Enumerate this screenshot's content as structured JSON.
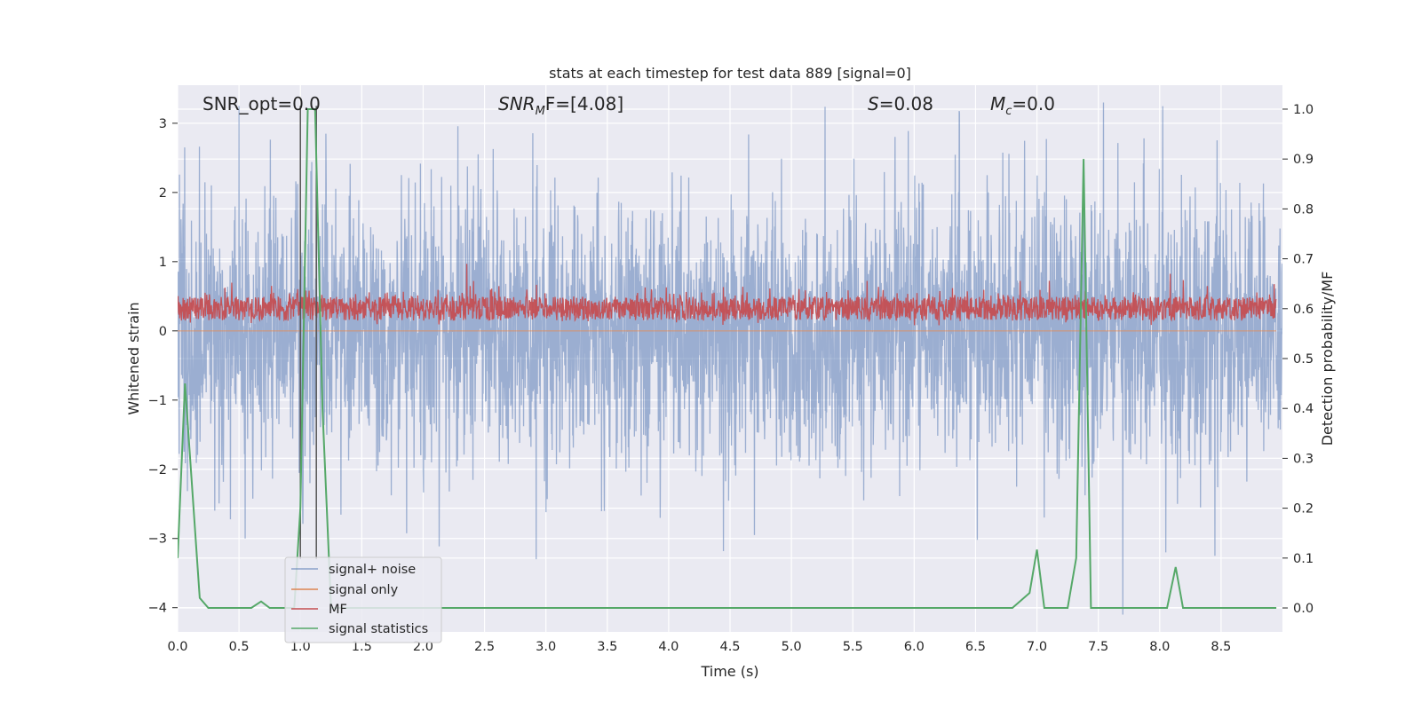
{
  "chart_data": {
    "type": "line",
    "title": "stats at each timestep for test data 889 [signal=0]",
    "xlabel": "Time (s)",
    "ylabel": "Whitened strain",
    "y2label": "Detection probability/MF",
    "xlim": [
      0,
      9.0
    ],
    "ylim": [
      -4.35,
      3.55
    ],
    "y2lim": [
      -0.048,
      1.048
    ],
    "x_ticks": [
      0.0,
      0.5,
      1.0,
      1.5,
      2.0,
      2.5,
      3.0,
      3.5,
      4.0,
      4.5,
      5.0,
      5.5,
      6.0,
      6.5,
      7.0,
      7.5,
      8.0,
      8.5
    ],
    "x_tick_labels": [
      "0.0",
      "0.5",
      "1.0",
      "1.5",
      "2.0",
      "2.5",
      "3.0",
      "3.5",
      "4.0",
      "4.5",
      "5.0",
      "5.5",
      "6.0",
      "6.5",
      "7.0",
      "7.5",
      "8.0",
      "8.5"
    ],
    "y_ticks": [
      -4,
      -3,
      -2,
      -1,
      0,
      1,
      2,
      3
    ],
    "y_tick_labels": [
      "−4",
      "−3",
      "−2",
      "−1",
      "0",
      "1",
      "2",
      "3"
    ],
    "y2_ticks": [
      0.0,
      0.1,
      0.2,
      0.3,
      0.4,
      0.5,
      0.6,
      0.7,
      0.8,
      0.9,
      1.0
    ],
    "y2_tick_labels": [
      "0.0",
      "0.1",
      "0.2",
      "0.3",
      "0.4",
      "0.5",
      "0.6",
      "0.7",
      "0.8",
      "0.9",
      "1.0"
    ],
    "grid": true,
    "legend_position": "lower-left",
    "annotations": {
      "snr_opt": "SNR_opt=0.0",
      "snr_mf_main": "SNR",
      "snr_mf_sub": "M",
      "snr_mf_rest": "F=[4.08]",
      "s_main": "S",
      "s_rest": "=0.08",
      "mc_main": "M",
      "mc_sub": "c",
      "mc_rest": "=0.0"
    },
    "series": [
      {
        "name": "signal+ noise",
        "color": "#4c72b0",
        "axis": "left",
        "style": "noise",
        "noise_sigma": 1.0,
        "duration": 9.0,
        "spikes": [
          [
            0.5,
            3.25
          ],
          [
            1.13,
            3.25
          ],
          [
            6.37,
            3.15
          ],
          [
            7.7,
            3.25
          ],
          [
            2.92,
            -3.3
          ],
          [
            7.7,
            -4.1
          ],
          [
            8.05,
            -3.2
          ],
          [
            8.45,
            -3.25
          ],
          [
            4.7,
            -2.95
          ],
          [
            0.55,
            -3.0
          ]
        ]
      },
      {
        "name": "signal only",
        "color": "#dd8452",
        "axis": "left",
        "style": "flat",
        "value": 0.0
      },
      {
        "name": "MF",
        "color": "#c44e52",
        "axis": "right",
        "style": "mf",
        "base": 0.6,
        "duration": 9.0,
        "spikes": [
          [
            2.37,
            0.69
          ],
          [
            8.13,
            0.67
          ]
        ]
      },
      {
        "name": "signal statistics",
        "color": "#55a868",
        "axis": "right",
        "x": [
          0.0,
          0.06,
          0.18,
          0.25,
          0.3,
          0.6,
          0.68,
          0.75,
          0.85,
          0.95,
          1.0,
          1.06,
          1.12,
          1.18,
          1.25,
          1.3,
          6.8,
          6.94,
          7.0,
          7.06,
          7.12,
          7.25,
          7.32,
          7.38,
          7.44,
          7.5,
          8.0,
          8.06,
          8.13,
          8.19,
          8.25,
          8.95
        ],
        "y": [
          0.1,
          0.45,
          0.02,
          0.0,
          0.0,
          0.0,
          0.013,
          0.0,
          0.0,
          0.0,
          0.2,
          1.0,
          1.0,
          0.4,
          0.0,
          0.0,
          0.0,
          0.03,
          0.117,
          0.0,
          0.0,
          0.0,
          0.1,
          0.9,
          0.0,
          0.0,
          0.0,
          0.0,
          0.082,
          0.0,
          0.0,
          0.0
        ]
      }
    ],
    "vertical_lines": [
      1.0,
      1.13
    ]
  }
}
